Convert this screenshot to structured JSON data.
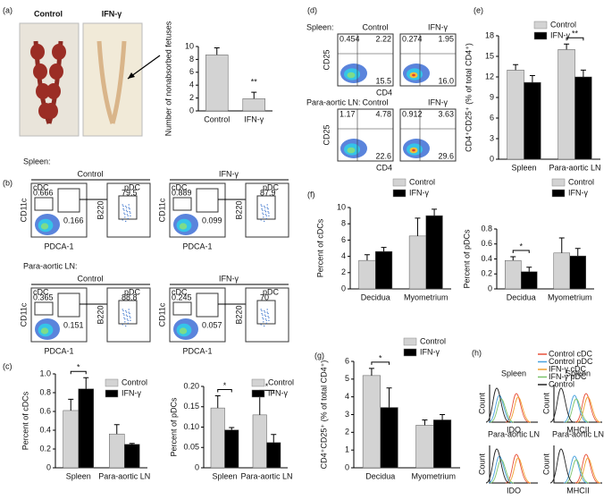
{
  "panel_labels": [
    "(a)",
    "(b)",
    "(c)",
    "(d)",
    "(e)",
    "(f)",
    "(g)",
    "(h)"
  ],
  "photos": {
    "labels": [
      "Control",
      "IFN-γ"
    ]
  },
  "chart_data": [
    {
      "type": "bar",
      "ylabel": "Number of nonabsorbed fetuses",
      "categories": [
        "Control",
        "IFN-γ"
      ],
      "values": [
        8.7,
        1.9
      ],
      "errors": [
        1.1,
        1.0
      ],
      "color": "#d3d3d3",
      "ylim": [
        0,
        10
      ],
      "yticks": [
        0,
        2,
        4,
        6,
        8,
        10
      ],
      "significance": [
        null,
        "**"
      ]
    },
    {
      "type": "bar",
      "ylabel": "Percent of cDCs",
      "categories": [
        "Spleen",
        "Para-aortic LN"
      ],
      "series": [
        {
          "name": "Control",
          "color": "#d3d3d3",
          "values": [
            0.61,
            0.36
          ],
          "errors": [
            0.12,
            0.1
          ]
        },
        {
          "name": "IFN-γ",
          "color": "#000000",
          "values": [
            0.84,
            0.25
          ],
          "errors": [
            0.12,
            0.01
          ]
        }
      ],
      "ylim": [
        0,
        1
      ],
      "yticks": [
        0,
        0.2,
        0.4,
        0.6,
        0.8,
        {
          "value": 1,
          "label": "1.0"
        }
      ],
      "significance": [
        "*",
        null
      ]
    },
    {
      "type": "bar",
      "ylabel": "Percent of pDCs",
      "categories": [
        "Spleen",
        "Para-aortic LN"
      ],
      "series": [
        {
          "name": "Control",
          "color": "#d3d3d3",
          "values": [
            0.147,
            0.13
          ],
          "errors": [
            0.03,
            0.045
          ]
        },
        {
          "name": "IFN-γ",
          "color": "#000000",
          "values": [
            0.093,
            0.062
          ],
          "errors": [
            0.006,
            0.02
          ]
        }
      ],
      "ylim": [
        0,
        0.2
      ],
      "yticks": [
        0,
        0.05,
        {
          "value": 0.1,
          "label": "0.10"
        },
        0.15,
        {
          "value": 0.2,
          "label": "0.20"
        }
      ],
      "significance": [
        "*",
        "*"
      ]
    },
    {
      "type": "bar",
      "ylabel": "CD4⁺CD25⁺ (% of total CD4⁺)",
      "categories": [
        "Spleen",
        "Para-aortic LN"
      ],
      "series": [
        {
          "name": "Control",
          "color": "#d3d3d3",
          "values": [
            13,
            16
          ],
          "errors": [
            0.8,
            0.8
          ]
        },
        {
          "name": "IFN-γ",
          "color": "#000000",
          "values": [
            11.2,
            12
          ],
          "errors": [
            1,
            1
          ]
        }
      ],
      "ylim": [
        0,
        18
      ],
      "yticks": [
        0,
        3,
        6,
        9,
        12,
        15,
        18
      ],
      "significance": [
        null,
        "**"
      ]
    },
    {
      "type": "bar",
      "ylabel": "Percent of cDCs",
      "categories": [
        "Decidua",
        "Myometrium"
      ],
      "series": [
        {
          "name": "Control",
          "color": "#d3d3d3",
          "values": [
            3.5,
            6.5
          ],
          "errors": [
            0.7,
            2.2
          ]
        },
        {
          "name": "IFN-γ",
          "color": "#000000",
          "values": [
            4.6,
            9
          ],
          "errors": [
            0.5,
            0.8
          ]
        }
      ],
      "ylim": [
        0,
        10
      ],
      "yticks": [
        0,
        2,
        4,
        6,
        8,
        10
      ],
      "significance": [
        null,
        null
      ]
    },
    {
      "type": "bar",
      "ylabel": "Percent of pDCs",
      "categories": [
        "Decidua",
        "Myometrium"
      ],
      "series": [
        {
          "name": "Control",
          "color": "#d3d3d3",
          "values": [
            0.38,
            0.48
          ],
          "errors": [
            0.05,
            0.2
          ]
        },
        {
          "name": "IFN-γ",
          "color": "#000000",
          "values": [
            0.23,
            0.44
          ],
          "errors": [
            0.06,
            0.1
          ]
        }
      ],
      "ylim": [
        0,
        0.8
      ],
      "yticks": [
        0,
        0.2,
        0.4,
        0.6,
        0.8
      ],
      "significance": [
        "*",
        null
      ]
    },
    {
      "type": "bar",
      "ylabel": "CD4⁺CD25⁺ (% of total CD4⁺)",
      "categories": [
        "Decidua",
        "Myometrium"
      ],
      "series": [
        {
          "name": "Control",
          "color": "#d3d3d3",
          "values": [
            5.2,
            2.4
          ],
          "errors": [
            0.4,
            0.3
          ]
        },
        {
          "name": "IFN-γ",
          "color": "#000000",
          "values": [
            3.4,
            2.7
          ],
          "errors": [
            1.1,
            0.3
          ]
        }
      ],
      "ylim": [
        0,
        6
      ],
      "yticks": [
        0,
        1,
        2,
        3,
        4,
        5,
        6
      ],
      "significance": [
        "*",
        null
      ]
    }
  ],
  "panel_b": {
    "cdc_label": "cDC",
    "pdc_label": "pDC",
    "x_axis": "PDCA-1",
    "y_axis": "CD11c",
    "pdc_y_axis": "B220",
    "groups": [
      {
        "tissue": "Spleen:",
        "conditions": [
          {
            "name": "Control",
            "cdc": "0.666",
            "cdc_low": "0.166",
            "pdc": "79.5"
          },
          {
            "name": "IFN-γ",
            "cdc": "0.889",
            "cdc_low": "0.099",
            "pdc": "87.9"
          }
        ]
      },
      {
        "tissue": "Para-aortic LN:",
        "conditions": [
          {
            "name": "Control",
            "cdc": "0.365",
            "cdc_low": "0.151",
            "pdc": "88.8"
          },
          {
            "name": "IFN-γ",
            "cdc": "0.245",
            "cdc_low": "0.057",
            "pdc": "70"
          }
        ]
      }
    ]
  },
  "panel_d": {
    "x_axis": "CD4",
    "y_axis": "CD25",
    "groups": [
      {
        "tissue": "Spleen:",
        "conditions": [
          {
            "name": "Control",
            "quadrants": [
              "0.454",
              "2.22",
              "15.5"
            ]
          },
          {
            "name": "IFN-γ",
            "quadrants": [
              "0.274",
              "1.95",
              "16.0"
            ]
          }
        ]
      },
      {
        "tissue": "Para-aortic LN:",
        "conditions": [
          {
            "name": "Control",
            "quadrants": [
              "1.17",
              "4.78",
              "22.6"
            ]
          },
          {
            "name": "IFN-γ",
            "quadrants": [
              "0.912",
              "3.63",
              "29.6"
            ]
          }
        ]
      }
    ]
  },
  "panel_h": {
    "ylabel": "Count",
    "legend": [
      {
        "name": "Control cDC",
        "color": "#e8513a"
      },
      {
        "name": "Control pDC",
        "color": "#4aa3df"
      },
      {
        "name": "IFN-γ cDC",
        "color": "#f0a030"
      },
      {
        "name": "IFN-γ pDC",
        "color": "#7cc36a"
      },
      {
        "name": "Control",
        "color": "#222222"
      }
    ],
    "plots": [
      {
        "title": "Spleen",
        "xlabel": "IDO"
      },
      {
        "title": "Spleen",
        "xlabel": "MHCII"
      },
      {
        "title": "Para-aortic LN",
        "xlabel": "IDO"
      },
      {
        "title": "Para-aortic LN",
        "xlabel": "MHCII"
      }
    ]
  }
}
